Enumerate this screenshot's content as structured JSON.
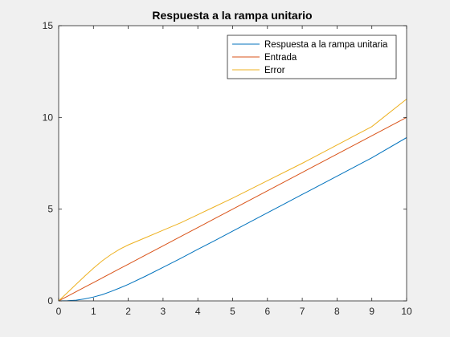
{
  "chart_data": {
    "type": "line",
    "title": "Respuesta a la rampa unitario",
    "xlabel": "",
    "ylabel": "",
    "xlim": [
      0,
      10
    ],
    "ylim": [
      0,
      15
    ],
    "xticks": [
      "0",
      "1",
      "2",
      "3",
      "4",
      "5",
      "6",
      "7",
      "8",
      "9",
      "10"
    ],
    "yticks": [
      "0",
      "5",
      "10",
      "15"
    ],
    "grid": false,
    "legend_position": "top-right",
    "x": [
      0,
      0.25,
      0.5,
      0.75,
      1,
      1.25,
      1.5,
      1.75,
      2,
      2.5,
      3,
      3.5,
      4,
      4.5,
      5,
      6,
      7,
      8,
      9,
      10
    ],
    "series": [
      {
        "name": "Respuesta a la rampa unitaria",
        "color": "#0072BD",
        "values": [
          0,
          0.01,
          0.04,
          0.11,
          0.21,
          0.34,
          0.51,
          0.7,
          0.9,
          1.35,
          1.83,
          2.31,
          2.81,
          3.3,
          3.8,
          4.8,
          5.8,
          6.8,
          7.8,
          8.9
        ]
      },
      {
        "name": "Entrada",
        "color": "#D95319",
        "values": [
          0,
          0.25,
          0.5,
          0.75,
          1,
          1.25,
          1.5,
          1.75,
          2,
          2.5,
          3,
          3.5,
          4,
          4.5,
          5,
          6,
          7,
          8,
          9,
          10
        ]
      },
      {
        "name": "Error",
        "color": "#EDB120",
        "values": [
          0,
          0.45,
          0.9,
          1.35,
          1.78,
          2.18,
          2.52,
          2.81,
          3.05,
          3.45,
          3.85,
          4.25,
          4.7,
          5.15,
          5.6,
          6.55,
          7.5,
          8.5,
          9.5,
          11.0
        ]
      }
    ]
  }
}
